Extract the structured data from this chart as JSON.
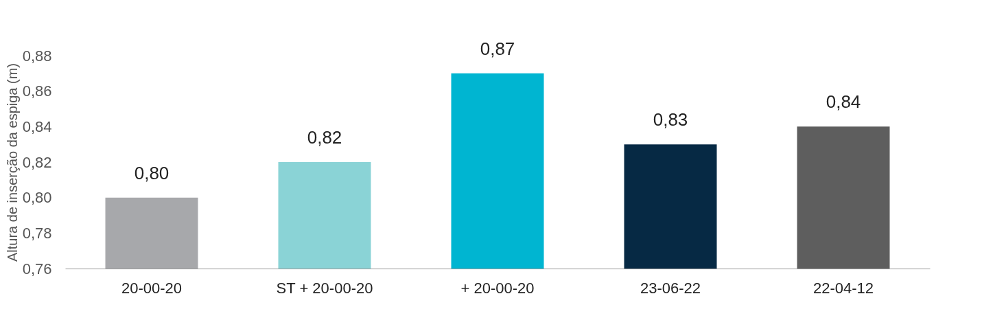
{
  "chart_data": {
    "type": "bar",
    "ylabel": "Altura de inserção da espiga (m)",
    "categories": [
      "20-00-20",
      "ST + 20-00-20",
      "+ 20-00-20",
      "23-06-22",
      "22-04-12"
    ],
    "values": [
      0.8,
      0.82,
      0.87,
      0.83,
      0.84
    ],
    "value_labels": [
      "0,80",
      "0,82",
      "0,87",
      "0,83",
      "0,84"
    ],
    "colors": [
      "#a7a8ab",
      "#8ad3d6",
      "#00b5d1",
      "#062944",
      "#5e5e5e"
    ],
    "ylim": [
      0.76,
      0.88
    ],
    "yticks": [
      {
        "value": 0.76,
        "label": "0,76"
      },
      {
        "value": 0.78,
        "label": "0,78"
      },
      {
        "value": 0.8,
        "label": "0,80"
      },
      {
        "value": 0.82,
        "label": "0,82"
      },
      {
        "value": 0.84,
        "label": "0,84"
      },
      {
        "value": 0.86,
        "label": "0,86"
      },
      {
        "value": 0.88,
        "label": "0,88"
      }
    ],
    "grid": false
  }
}
